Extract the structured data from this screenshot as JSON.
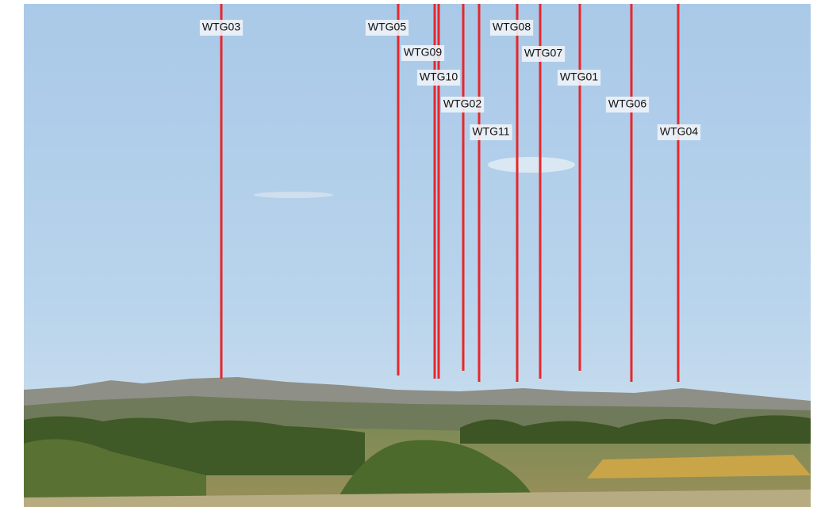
{
  "turbines": [
    {
      "label": "WTG03"
    },
    {
      "label": "WTG05"
    },
    {
      "label": "WTG09"
    },
    {
      "label": "WTG10"
    },
    {
      "label": "WTG02"
    },
    {
      "label": "WTG11"
    },
    {
      "label": "WTG08"
    },
    {
      "label": "WTG07"
    },
    {
      "label": "WTG01"
    },
    {
      "label": "WTG06"
    },
    {
      "label": "WTG04"
    }
  ]
}
